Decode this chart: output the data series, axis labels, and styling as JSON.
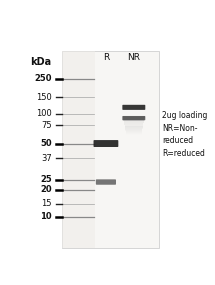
{
  "background_color": "#ffffff",
  "gel_bg": "#f7f6f4",
  "fig_width": 2.15,
  "fig_height": 2.85,
  "dpi": 100,
  "kda_label": "kDa",
  "ladder_marks": [
    250,
    150,
    100,
    75,
    50,
    37,
    25,
    20,
    15,
    10
  ],
  "col_R_label": "R",
  "col_NR_label": "NR",
  "annotation_text": "2ug loading\nNR=Non-\nreduced\nR=reduced",
  "text_color": "#111111",
  "label_fontsize": 6.0,
  "kda_fontsize": 7.0,
  "column_fontsize": 6.5,
  "annot_fontsize": 5.5,
  "ladder_thick": [
    250,
    50,
    25,
    20,
    10
  ]
}
